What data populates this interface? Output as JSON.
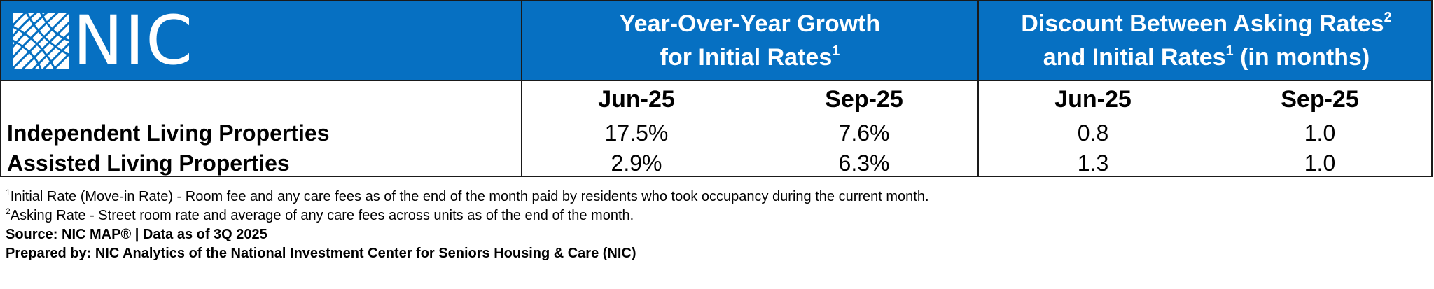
{
  "logo": {
    "text": "NIC"
  },
  "header": {
    "group1": {
      "line1": "Year-Over-Year Growth",
      "line2": "for Initial Rates",
      "mark": "1"
    },
    "group2": {
      "line1a": "Discount Between Asking Rates",
      "mark1": "2",
      "line2a": "and Initial Rates",
      "mark2": "1",
      "line2b": " (in months)"
    }
  },
  "subheader": [
    "Jun-25",
    "Sep-25",
    "Jun-25",
    "Sep-25"
  ],
  "rows": [
    {
      "label": "Independent Living Properties",
      "values": [
        "17.5%",
        "7.6%",
        "0.8",
        "1.0"
      ]
    },
    {
      "label": "Assisted Living Properties",
      "values": [
        "2.9%",
        "6.3%",
        "1.3",
        "1.0"
      ]
    }
  ],
  "footnotes": {
    "note1": {
      "mark": "1",
      "text": "Initial Rate (Move-in Rate) - Room fee and any care fees as of the end of the month paid by residents who took occupancy during the current month."
    },
    "note2": {
      "mark": "2",
      "text": "Asking Rate - Street room rate and average of any care fees across units as of the end of the month."
    },
    "source": "Source: NIC MAP® | Data as of 3Q 2025",
    "prepared": "Prepared by: NIC Analytics of the National Investment Center for Seniors Housing & Care (NIC)"
  }
}
